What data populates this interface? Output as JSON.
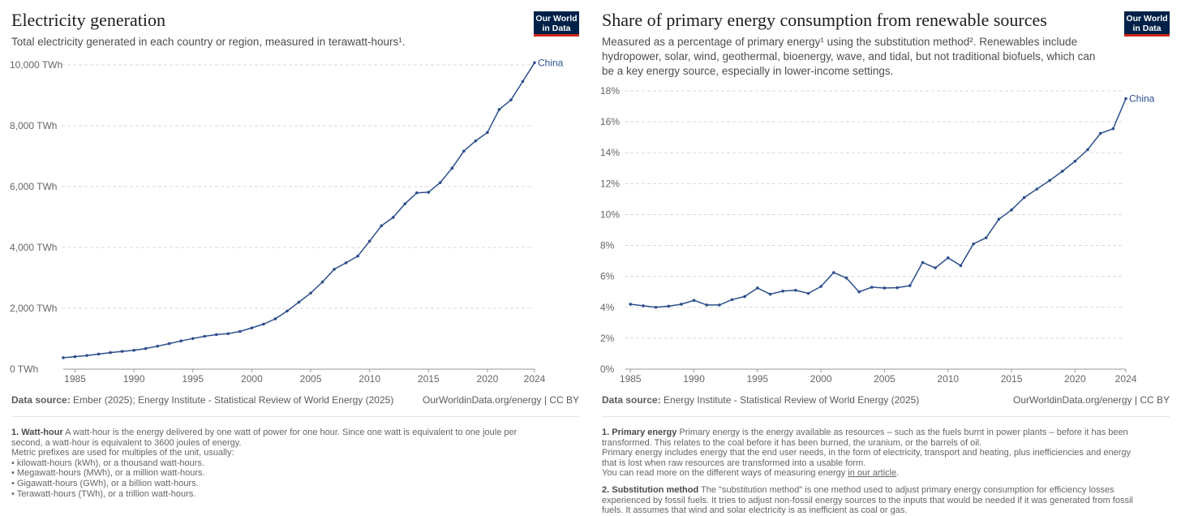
{
  "left": {
    "title": "Electricity generation",
    "subtitle": "Total electricity generated in each country or region, measured in  terawatt-hours¹.",
    "logo": "Our World in Data",
    "source_label": "Data source:",
    "source": "Ember (2025); Energy Institute - Statistical Review of World Energy (2025)",
    "credit": "OurWorldinData.org/energy  | CC BY",
    "notes": {
      "n1_title": "1. Watt-hour",
      "n1_text": "A watt-hour is the energy delivered by one watt of power for one hour. Since one watt is equivalent to one joule per second, a watt-hour is equivalent to 3600 joules of energy.",
      "n1_line2": "Metric prefixes are used for multiples of the unit, usually:",
      "bullets": [
        "• kilowatt-hours (kWh), or a thousand watt-hours.",
        "• Megawatt-hours (MWh), or a million watt-hours.",
        "• Gigawatt-hours (GWh), or a billion watt-hours.",
        "• Terawatt-hours (TWh), or a trillion watt-hours."
      ]
    }
  },
  "right": {
    "title": "Share of primary energy consumption from renewable sources",
    "subtitle": "Measured as a percentage of  primary energy¹ using the substitution method². Renewables include hydropower, solar, wind, geothermal, bioenergy, wave, and tidal, but not traditional biofuels, which can be a key energy source, especially in lower-income settings.",
    "logo": "Our World in Data",
    "source_label": "Data source:",
    "source": "Energy Institute - Statistical Review of World Energy (2025)",
    "credit": "OurWorldinData.org/energy  | CC BY",
    "notes": {
      "n1_title": "1. Primary energy",
      "n1_text": "Primary energy is the energy available as resources – such as the fuels burnt in power plants – before it has been transformed. This relates to the coal before it has been burned, the uranium, or the barrels of oil.",
      "n1_line2": "Primary energy includes energy that the end user needs, in the form of electricity, transport and heating, plus inefficiencies and energy that is lost when raw resources are transformed into a usable form.",
      "n1_line3": "You can read more on the different ways of measuring energy ",
      "n1_link": "in our article",
      "n2_title": "2. Substitution method",
      "n2_text": "The \"substitution method\" is one method used to adjust primary energy consumption for efficiency losses experienced by fossil fuels. It tries to adjust non-fossil energy sources to the inputs that would be needed if it was generated from fossil fuels. It assumes that wind and solar electricity is as inefficient as coal or gas."
    }
  },
  "chart_data": [
    {
      "type": "line",
      "title": "Electricity generation",
      "ylabel": "TWh",
      "ylim": [
        0,
        10000
      ],
      "yticks": [
        0,
        2000,
        4000,
        6000,
        8000,
        10000
      ],
      "ytick_labels": [
        "0 TWh",
        "2,000 TWh",
        "4,000 TWh",
        "6,000 TWh",
        "8,000 TWh",
        "10,000 TWh"
      ],
      "xticks": [
        1985,
        1990,
        1995,
        2000,
        2005,
        2010,
        2015,
        2020,
        2024
      ],
      "xlim": [
        1984,
        2024
      ],
      "grid": true,
      "series": [
        {
          "name": "China",
          "color": "#2c4f8c",
          "x": [
            1984,
            1985,
            1986,
            1987,
            1988,
            1989,
            1990,
            1991,
            1992,
            1993,
            1994,
            1995,
            1996,
            1997,
            1998,
            1999,
            2000,
            2001,
            2002,
            2003,
            2004,
            2005,
            2006,
            2007,
            2008,
            2009,
            2010,
            2011,
            2012,
            2013,
            2014,
            2015,
            2016,
            2017,
            2018,
            2019,
            2020,
            2021,
            2022,
            2023,
            2024
          ],
          "values": [
            377,
            411,
            449,
            497,
            545,
            585,
            621,
            678,
            754,
            840,
            928,
            1007,
            1080,
            1135,
            1167,
            1239,
            1356,
            1480,
            1654,
            1910,
            2203,
            2500,
            2866,
            3282,
            3496,
            3715,
            4207,
            4713,
            4988,
            5432,
            5795,
            5815,
            6133,
            6604,
            7166,
            7503,
            7779,
            8534,
            8849,
            9457,
            10073
          ]
        }
      ]
    },
    {
      "type": "line",
      "title": "Share of primary energy consumption from renewable sources",
      "ylabel": "%",
      "ylim": [
        0,
        18
      ],
      "yticks": [
        0,
        2,
        4,
        6,
        8,
        10,
        12,
        14,
        16,
        18
      ],
      "ytick_labels": [
        "0%",
        "2%",
        "4%",
        "6%",
        "8%",
        "10%",
        "12%",
        "14%",
        "16%",
        "18%"
      ],
      "xticks": [
        1985,
        1990,
        1995,
        2000,
        2005,
        2010,
        2015,
        2020,
        2024
      ],
      "xlim": [
        1984.6,
        2024
      ],
      "grid": true,
      "series": [
        {
          "name": "China",
          "color": "#2c4f8c",
          "x": [
            1985,
            1986,
            1987,
            1988,
            1989,
            1990,
            1991,
            1992,
            1993,
            1994,
            1995,
            1996,
            1997,
            1998,
            1999,
            2000,
            2001,
            2002,
            2003,
            2004,
            2005,
            2006,
            2007,
            2008,
            2009,
            2010,
            2011,
            2012,
            2013,
            2014,
            2015,
            2016,
            2017,
            2018,
            2019,
            2020,
            2021,
            2022,
            2023,
            2024
          ],
          "values": [
            4.2,
            4.1,
            4.0,
            4.07,
            4.2,
            4.45,
            4.15,
            4.15,
            4.5,
            4.7,
            5.25,
            4.85,
            5.05,
            5.1,
            4.9,
            5.35,
            6.25,
            5.9,
            5.0,
            5.3,
            5.25,
            5.27,
            5.4,
            6.9,
            6.55,
            7.2,
            6.7,
            8.1,
            8.5,
            9.7,
            10.3,
            11.1,
            11.65,
            12.2,
            12.8,
            13.45,
            14.2,
            15.25,
            15.55,
            17.5
          ]
        }
      ]
    }
  ]
}
